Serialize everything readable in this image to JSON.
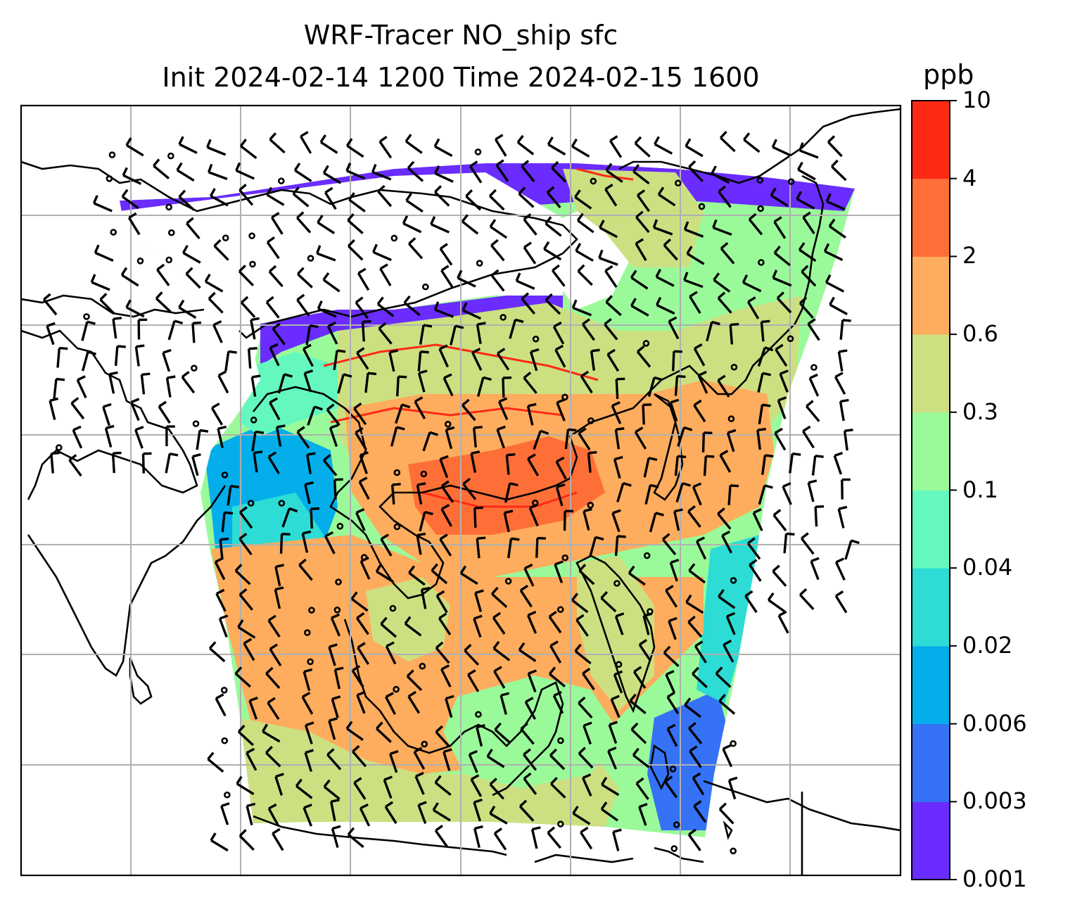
{
  "title": {
    "line1": "WRF-Tracer NO_ship sfc",
    "line2": "Init 2024-02-14 1200 Time 2024-02-15 1600"
  },
  "colorbar": {
    "unit": "ppb",
    "levels": [
      "0.001",
      "0.003",
      "0.006",
      "0.02",
      "0.04",
      "0.1",
      "0.3",
      "0.6",
      "2",
      "4",
      "10"
    ],
    "colors": [
      "#6a2cff",
      "#3572f5",
      "#04aeea",
      "#2ddcd4",
      "#64f8bf",
      "#9afa9a",
      "#cce082",
      "#feac5d",
      "#fe6f38",
      "#ff2a16"
    ]
  },
  "map": {
    "field": "NO_ship",
    "level": "sfc",
    "gridlines": true,
    "coastlines": true,
    "wind_barbs": true
  }
}
